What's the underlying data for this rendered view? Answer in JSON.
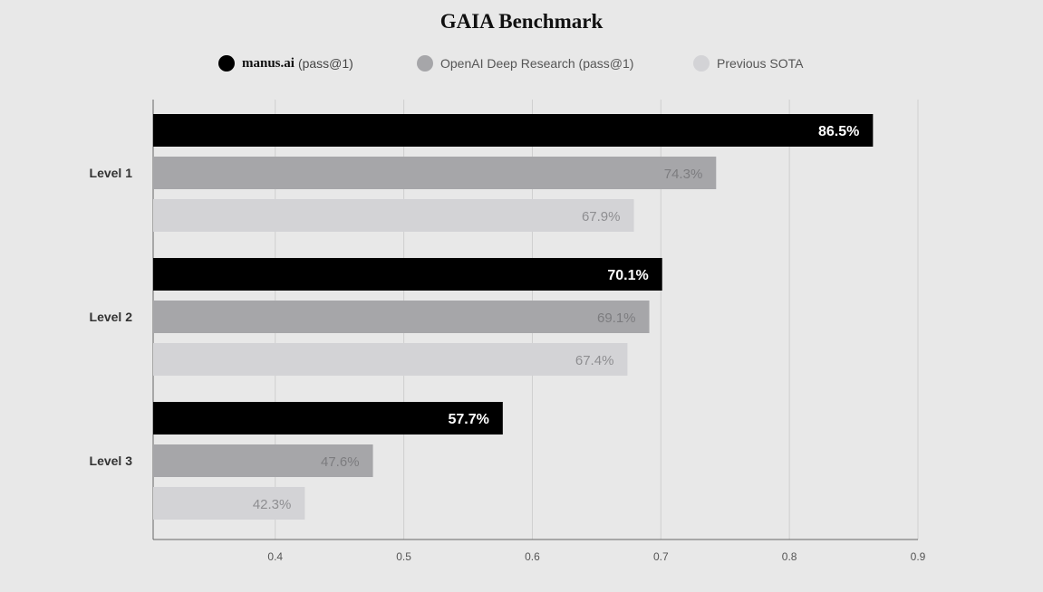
{
  "chart_data": {
    "type": "bar",
    "orientation": "horizontal",
    "title": "GAIA Benchmark",
    "categories": [
      "Level 1",
      "Level 2",
      "Level 3"
    ],
    "series": [
      {
        "name": "manus.ai",
        "name_suffix": "(pass@1)",
        "color": "#000000",
        "values": [
          0.865,
          0.701,
          0.577
        ],
        "labels": [
          "86.5%",
          "70.1%",
          "57.7%"
        ],
        "label_color": "#ffffff"
      },
      {
        "name": "OpenAI Deep Research (pass@1)",
        "name_suffix": "",
        "color": "#a6a6a9",
        "values": [
          0.743,
          0.691,
          0.476
        ],
        "labels": [
          "74.3%",
          "69.1%",
          "47.6%"
        ],
        "label_color": "#7c7c7f"
      },
      {
        "name": "Previous SOTA",
        "name_suffix": "",
        "color": "#d3d3d6",
        "values": [
          0.679,
          0.674,
          0.423
        ],
        "labels": [
          "67.9%",
          "67.4%",
          "42.3%"
        ],
        "label_color": "#8e8e91"
      }
    ],
    "xlim": [
      0.305,
      0.9
    ],
    "xticks": [
      "0.4",
      "0.5",
      "0.6",
      "0.7",
      "0.8",
      "0.9"
    ],
    "grid": true,
    "legend_position": "top-center",
    "xlabel": "",
    "ylabel": ""
  }
}
